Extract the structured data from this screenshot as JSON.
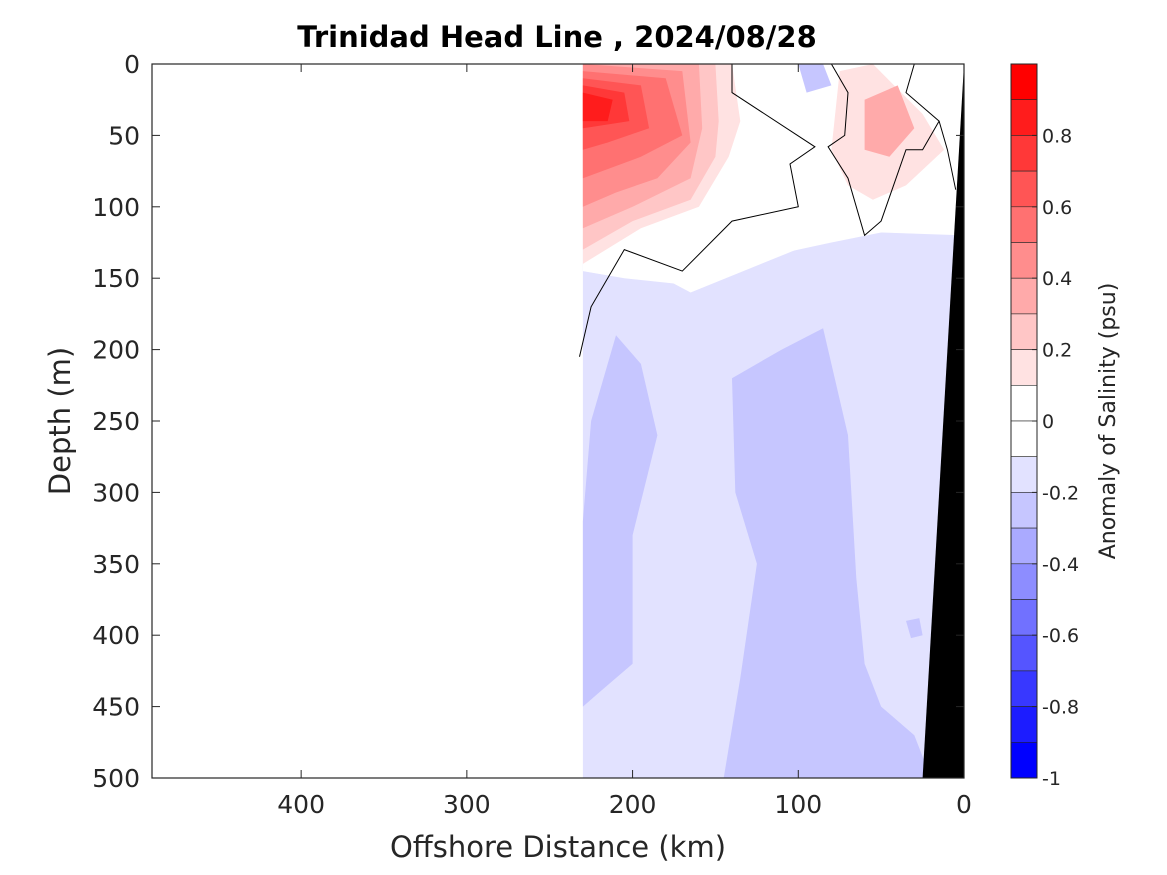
{
  "chart_data": {
    "type": "heatmap",
    "subtype": "filled-contour section",
    "title": "Trinidad Head Line , 2024/08/28",
    "xlabel": "Offshore Distance (km)",
    "ylabel": "Depth (m)",
    "colorbar_label": "Anomaly of Salinity (psu)",
    "x_axis": {
      "range": [
        490,
        0
      ],
      "reversed": true,
      "ticks": [
        400,
        300,
        200,
        100,
        0
      ],
      "tick_labels": [
        "400",
        "300",
        "200",
        "100",
        "0"
      ]
    },
    "y_axis": {
      "range": [
        0,
        500
      ],
      "reversed": true,
      "ticks": [
        0,
        50,
        100,
        150,
        200,
        250,
        300,
        350,
        400,
        450,
        500
      ],
      "tick_labels": [
        "0",
        "50",
        "100",
        "150",
        "200",
        "250",
        "300",
        "350",
        "400",
        "450",
        "500"
      ]
    },
    "colorbar": {
      "range": [
        -1,
        1
      ],
      "ticks": [
        0.8,
        0.6,
        0.4,
        0.2,
        0,
        -0.2,
        -0.4,
        -0.6,
        -0.8,
        -1
      ],
      "tick_labels": [
        "0.8",
        "0.6",
        "0.4",
        "0.2",
        "0",
        "-0.2",
        "-0.4",
        "-0.6",
        "-0.8",
        "-1"
      ],
      "levels": [
        {
          "from": 0.9,
          "to": 1.0,
          "color": "#ff0000"
        },
        {
          "from": 0.8,
          "to": 0.9,
          "color": "#ff1c1c"
        },
        {
          "from": 0.7,
          "to": 0.8,
          "color": "#ff3838"
        },
        {
          "from": 0.6,
          "to": 0.7,
          "color": "#ff5555"
        },
        {
          "from": 0.5,
          "to": 0.6,
          "color": "#ff7171"
        },
        {
          "from": 0.4,
          "to": 0.5,
          "color": "#ff8d8d"
        },
        {
          "from": 0.3,
          "to": 0.4,
          "color": "#ffaaaa"
        },
        {
          "from": 0.2,
          "to": 0.3,
          "color": "#ffc6c6"
        },
        {
          "from": 0.1,
          "to": 0.2,
          "color": "#ffe2e2"
        },
        {
          "from": 0.0,
          "to": 0.1,
          "color": "#ffffff"
        },
        {
          "from": -0.1,
          "to": 0.0,
          "color": "#ffffff"
        },
        {
          "from": -0.2,
          "to": -0.1,
          "color": "#e2e2ff"
        },
        {
          "from": -0.3,
          "to": -0.2,
          "color": "#c6c6ff"
        },
        {
          "from": -0.4,
          "to": -0.3,
          "color": "#aaaaff"
        },
        {
          "from": -0.5,
          "to": -0.4,
          "color": "#8d8dff"
        },
        {
          "from": -0.6,
          "to": -0.5,
          "color": "#7171ff"
        },
        {
          "from": -0.7,
          "to": -0.6,
          "color": "#5555ff"
        },
        {
          "from": -0.8,
          "to": -0.7,
          "color": "#3838ff"
        },
        {
          "from": -0.9,
          "to": -0.8,
          "color": "#1c1cff"
        },
        {
          "from": -1.0,
          "to": -0.9,
          "color": "#0000ff"
        }
      ]
    },
    "regions": [
      {
        "level": -0.15,
        "color": "#e2e2ff",
        "points": [
          [
            230,
            120
          ],
          [
            165,
            160
          ],
          [
            80,
            120
          ],
          [
            0,
            110
          ],
          [
            0,
            500
          ],
          [
            230,
            500
          ]
        ]
      },
      {
        "level": 0.05,
        "color": "#ffffff",
        "points": [
          [
            230,
            0
          ],
          [
            0,
            0
          ],
          [
            0,
            120
          ],
          [
            50,
            118
          ],
          [
            80,
            125
          ],
          [
            120,
            135
          ],
          [
            165,
            155
          ],
          [
            205,
            150
          ],
          [
            230,
            145
          ]
        ]
      },
      {
        "level": 0.15,
        "color": "#ffe2e2",
        "points": [
          [
            230,
            0
          ],
          [
            140,
            0
          ],
          [
            135,
            40
          ],
          [
            142,
            65
          ],
          [
            160,
            100
          ],
          [
            195,
            115
          ],
          [
            230,
            140
          ]
        ]
      },
      {
        "level": 0.15,
        "color": "#ffe2e2",
        "points": [
          [
            75,
            5
          ],
          [
            55,
            0
          ],
          [
            25,
            35
          ],
          [
            12,
            60
          ],
          [
            35,
            85
          ],
          [
            55,
            95
          ],
          [
            70,
            85
          ],
          [
            80,
            60
          ]
        ]
      },
      {
        "level": 0.25,
        "color": "#ffc6c6",
        "points": [
          [
            230,
            0
          ],
          [
            150,
            0
          ],
          [
            148,
            40
          ],
          [
            150,
            65
          ],
          [
            165,
            95
          ],
          [
            200,
            110
          ],
          [
            230,
            130
          ]
        ]
      },
      {
        "level": 0.35,
        "color": "#ffaaaa",
        "points": [
          [
            60,
            25
          ],
          [
            40,
            15
          ],
          [
            30,
            45
          ],
          [
            45,
            65
          ],
          [
            60,
            60
          ]
        ]
      },
      {
        "level": 0.35,
        "color": "#ffaaaa",
        "points": [
          [
            230,
            0
          ],
          [
            160,
            0
          ],
          [
            158,
            45
          ],
          [
            165,
            80
          ],
          [
            200,
            100
          ],
          [
            230,
            115
          ]
        ]
      },
      {
        "level": 0.45,
        "color": "#ff8d8d",
        "points": [
          [
            230,
            0
          ],
          [
            170,
            5
          ],
          [
            165,
            55
          ],
          [
            185,
            80
          ],
          [
            210,
            90
          ],
          [
            230,
            100
          ]
        ]
      },
      {
        "level": 0.55,
        "color": "#ff7171",
        "points": [
          [
            230,
            5
          ],
          [
            180,
            10
          ],
          [
            170,
            50
          ],
          [
            195,
            65
          ],
          [
            230,
            80
          ]
        ]
      },
      {
        "level": 0.65,
        "color": "#ff5555",
        "points": [
          [
            230,
            10
          ],
          [
            195,
            15
          ],
          [
            190,
            45
          ],
          [
            215,
            55
          ],
          [
            230,
            60
          ]
        ]
      },
      {
        "level": 0.75,
        "color": "#ff3838",
        "points": [
          [
            230,
            15
          ],
          [
            205,
            20
          ],
          [
            202,
            40
          ],
          [
            230,
            45
          ]
        ]
      },
      {
        "level": 0.85,
        "color": "#ff1c1c",
        "points": [
          [
            230,
            20
          ],
          [
            212,
            25
          ],
          [
            215,
            40
          ],
          [
            230,
            40
          ]
        ]
      },
      {
        "level": -0.25,
        "color": "#c6c6ff",
        "points": [
          [
            230,
            320
          ],
          [
            225,
            250
          ],
          [
            210,
            190
          ],
          [
            195,
            210
          ],
          [
            185,
            260
          ],
          [
            200,
            330
          ],
          [
            200,
            420
          ],
          [
            220,
            440
          ],
          [
            230,
            450
          ]
        ]
      },
      {
        "level": -0.25,
        "color": "#c6c6ff",
        "points": [
          [
            140,
            220
          ],
          [
            110,
            200
          ],
          [
            85,
            185
          ],
          [
            70,
            260
          ],
          [
            65,
            360
          ],
          [
            60,
            420
          ],
          [
            50,
            450
          ],
          [
            30,
            470
          ],
          [
            20,
            500
          ],
          [
            145,
            500
          ],
          [
            135,
            430
          ],
          [
            125,
            350
          ],
          [
            138,
            300
          ]
        ]
      },
      {
        "level": -0.25,
        "color": "#c6c6ff",
        "points": [
          [
            100,
            0
          ],
          [
            85,
            0
          ],
          [
            80,
            15
          ],
          [
            95,
            20
          ]
        ]
      },
      {
        "level": -0.25,
        "color": "#c6c6ff",
        "points": [
          [
            35,
            390
          ],
          [
            27,
            388
          ],
          [
            25,
            400
          ],
          [
            32,
            402
          ]
        ]
      }
    ],
    "zero_contour": [
      [
        [
          232,
          205
        ],
        [
          225,
          170
        ],
        [
          205,
          130
        ],
        [
          170,
          145
        ],
        [
          140,
          110
        ],
        [
          100,
          100
        ],
        [
          105,
          70
        ],
        [
          90,
          58
        ],
        [
          140,
          20
        ],
        [
          140,
          0
        ]
      ],
      [
        [
          80,
          0
        ],
        [
          70,
          20
        ],
        [
          72,
          50
        ],
        [
          82,
          58
        ],
        [
          70,
          80
        ],
        [
          60,
          120
        ],
        [
          50,
          110
        ],
        [
          35,
          60
        ],
        [
          25,
          60
        ],
        [
          15,
          40
        ],
        [
          35,
          20
        ],
        [
          30,
          0
        ]
      ],
      [
        [
          5,
          88
        ],
        [
          10,
          60
        ],
        [
          15,
          40
        ]
      ]
    ],
    "bathymetry": {
      "color": "#000000",
      "points": [
        [
          0,
          0
        ],
        [
          0,
          500
        ],
        [
          25,
          500
        ]
      ]
    }
  }
}
